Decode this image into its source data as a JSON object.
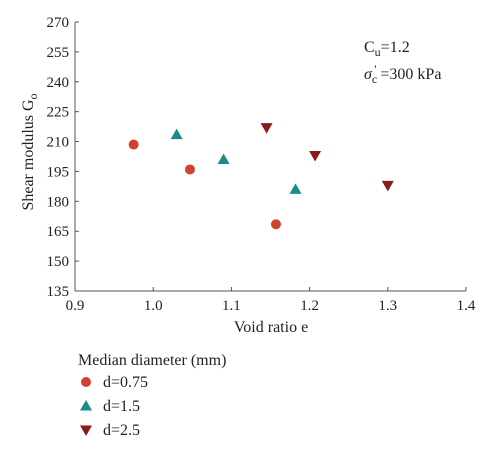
{
  "chart_data": {
    "type": "scatter",
    "xlabel": "Void ratio e",
    "ylabel_main": "Shear modulus G",
    "ylabel_sub": "o",
    "xlim": [
      0.9,
      1.4
    ],
    "ylim": [
      135,
      270
    ],
    "xticks": [
      "0.9",
      "1.0",
      "1.1",
      "1.2",
      "1.3",
      "1.4"
    ],
    "yticks": [
      "135",
      "150",
      "165",
      "180",
      "195",
      "210",
      "225",
      "240",
      "255",
      "270"
    ],
    "annotations": {
      "cu_main": "C",
      "cu_sub": "u",
      "cu_value": "=1.2",
      "sigma_main": "σ",
      "sigma_sub": "c",
      "sigma_sup": "'",
      "sigma_value": " =300 kPa"
    },
    "legend_title": "Median diameter (mm)",
    "legend_position": "below",
    "series": [
      {
        "name": "d=0.75",
        "marker": "circle",
        "color": "#d0432a",
        "points": [
          [
            0.975,
            208.5
          ],
          [
            1.047,
            196
          ],
          [
            1.157,
            168.5
          ]
        ]
      },
      {
        "name": "d=1.5",
        "marker": "triangle-up",
        "color": "#1a8a8a",
        "points": [
          [
            1.03,
            213.5
          ],
          [
            1.09,
            201
          ],
          [
            1.182,
            186
          ]
        ]
      },
      {
        "name": "d=2.5",
        "marker": "triangle-down",
        "color": "#8b1a1a",
        "points": [
          [
            1.145,
            217
          ],
          [
            1.207,
            203
          ],
          [
            1.3,
            188
          ]
        ]
      }
    ]
  }
}
